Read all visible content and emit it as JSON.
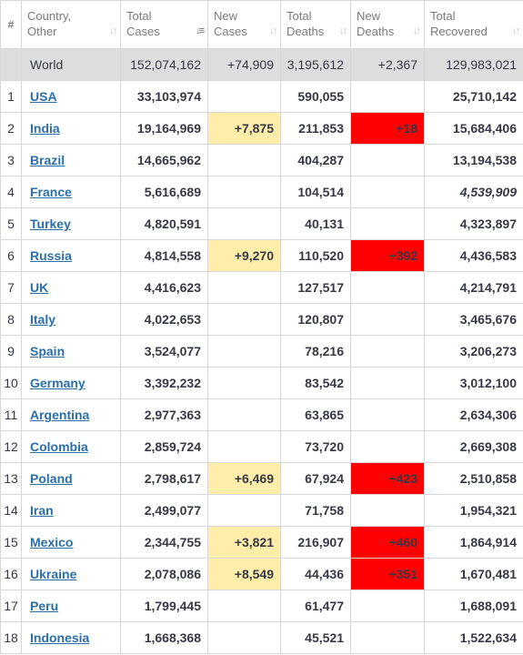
{
  "header": {
    "num": "#",
    "country_l1": "Country,",
    "country_l2": "Other",
    "total_cases_l1": "Total",
    "total_cases_l2": "Cases",
    "new_cases_l1": "New",
    "new_cases_l2": "Cases",
    "total_deaths_l1": "Total",
    "total_deaths_l2": "Deaths",
    "new_deaths_l1": "New",
    "new_deaths_l2": "Deaths",
    "total_recovered_l1": "Total",
    "total_recovered_l2": "Recovered",
    "sort_glyph": "↓↑",
    "sort_active_glyph": "↓≡"
  },
  "world": {
    "label": "World",
    "total_cases": "152,074,162",
    "new_cases": "+74,909",
    "total_deaths": "3,195,612",
    "new_deaths": "+2,367",
    "total_recovered": "129,983,021"
  },
  "colors": {
    "new_cases_highlight": "#ffeeaa",
    "new_deaths_highlight": "#ff0000",
    "link": "#2b6fa8",
    "world_row": "#dddddd"
  },
  "rows": [
    {
      "num": "1",
      "country": "USA",
      "total_cases": "33,103,974",
      "new_cases": "",
      "total_deaths": "590,055",
      "new_deaths": "",
      "total_recovered": "25,710,142"
    },
    {
      "num": "2",
      "country": "India",
      "total_cases": "19,164,969",
      "new_cases": "+7,875",
      "total_deaths": "211,853",
      "new_deaths": "+18",
      "total_recovered": "15,684,406"
    },
    {
      "num": "3",
      "country": "Brazil",
      "total_cases": "14,665,962",
      "new_cases": "",
      "total_deaths": "404,287",
      "new_deaths": "",
      "total_recovered": "13,194,538"
    },
    {
      "num": "4",
      "country": "France",
      "total_cases": "5,616,689",
      "new_cases": "",
      "total_deaths": "104,514",
      "new_deaths": "",
      "total_recovered": "4,539,909",
      "recovered_estimated": true
    },
    {
      "num": "5",
      "country": "Turkey",
      "total_cases": "4,820,591",
      "new_cases": "",
      "total_deaths": "40,131",
      "new_deaths": "",
      "total_recovered": "4,323,897"
    },
    {
      "num": "6",
      "country": "Russia",
      "total_cases": "4,814,558",
      "new_cases": "+9,270",
      "total_deaths": "110,520",
      "new_deaths": "+392",
      "total_recovered": "4,436,583"
    },
    {
      "num": "7",
      "country": "UK",
      "total_cases": "4,416,623",
      "new_cases": "",
      "total_deaths": "127,517",
      "new_deaths": "",
      "total_recovered": "4,214,791"
    },
    {
      "num": "8",
      "country": "Italy",
      "total_cases": "4,022,653",
      "new_cases": "",
      "total_deaths": "120,807",
      "new_deaths": "",
      "total_recovered": "3,465,676"
    },
    {
      "num": "9",
      "country": "Spain",
      "total_cases": "3,524,077",
      "new_cases": "",
      "total_deaths": "78,216",
      "new_deaths": "",
      "total_recovered": "3,206,273"
    },
    {
      "num": "10",
      "country": "Germany",
      "total_cases": "3,392,232",
      "new_cases": "",
      "total_deaths": "83,542",
      "new_deaths": "",
      "total_recovered": "3,012,100"
    },
    {
      "num": "11",
      "country": "Argentina",
      "total_cases": "2,977,363",
      "new_cases": "",
      "total_deaths": "63,865",
      "new_deaths": "",
      "total_recovered": "2,634,306"
    },
    {
      "num": "12",
      "country": "Colombia",
      "total_cases": "2,859,724",
      "new_cases": "",
      "total_deaths": "73,720",
      "new_deaths": "",
      "total_recovered": "2,669,308"
    },
    {
      "num": "13",
      "country": "Poland",
      "total_cases": "2,798,617",
      "new_cases": "+6,469",
      "total_deaths": "67,924",
      "new_deaths": "+423",
      "total_recovered": "2,510,858"
    },
    {
      "num": "14",
      "country": "Iran",
      "total_cases": "2,499,077",
      "new_cases": "",
      "total_deaths": "71,758",
      "new_deaths": "",
      "total_recovered": "1,954,321"
    },
    {
      "num": "15",
      "country": "Mexico",
      "total_cases": "2,344,755",
      "new_cases": "+3,821",
      "total_deaths": "216,907",
      "new_deaths": "+460",
      "total_recovered": "1,864,914"
    },
    {
      "num": "16",
      "country": "Ukraine",
      "total_cases": "2,078,086",
      "new_cases": "+8,549",
      "total_deaths": "44,436",
      "new_deaths": "+351",
      "total_recovered": "1,670,481"
    },
    {
      "num": "17",
      "country": "Peru",
      "total_cases": "1,799,445",
      "new_cases": "",
      "total_deaths": "61,477",
      "new_deaths": "",
      "total_recovered": "1,688,091"
    },
    {
      "num": "18",
      "country": "Indonesia",
      "total_cases": "1,668,368",
      "new_cases": "",
      "total_deaths": "45,521",
      "new_deaths": "",
      "total_recovered": "1,522,634"
    }
  ]
}
